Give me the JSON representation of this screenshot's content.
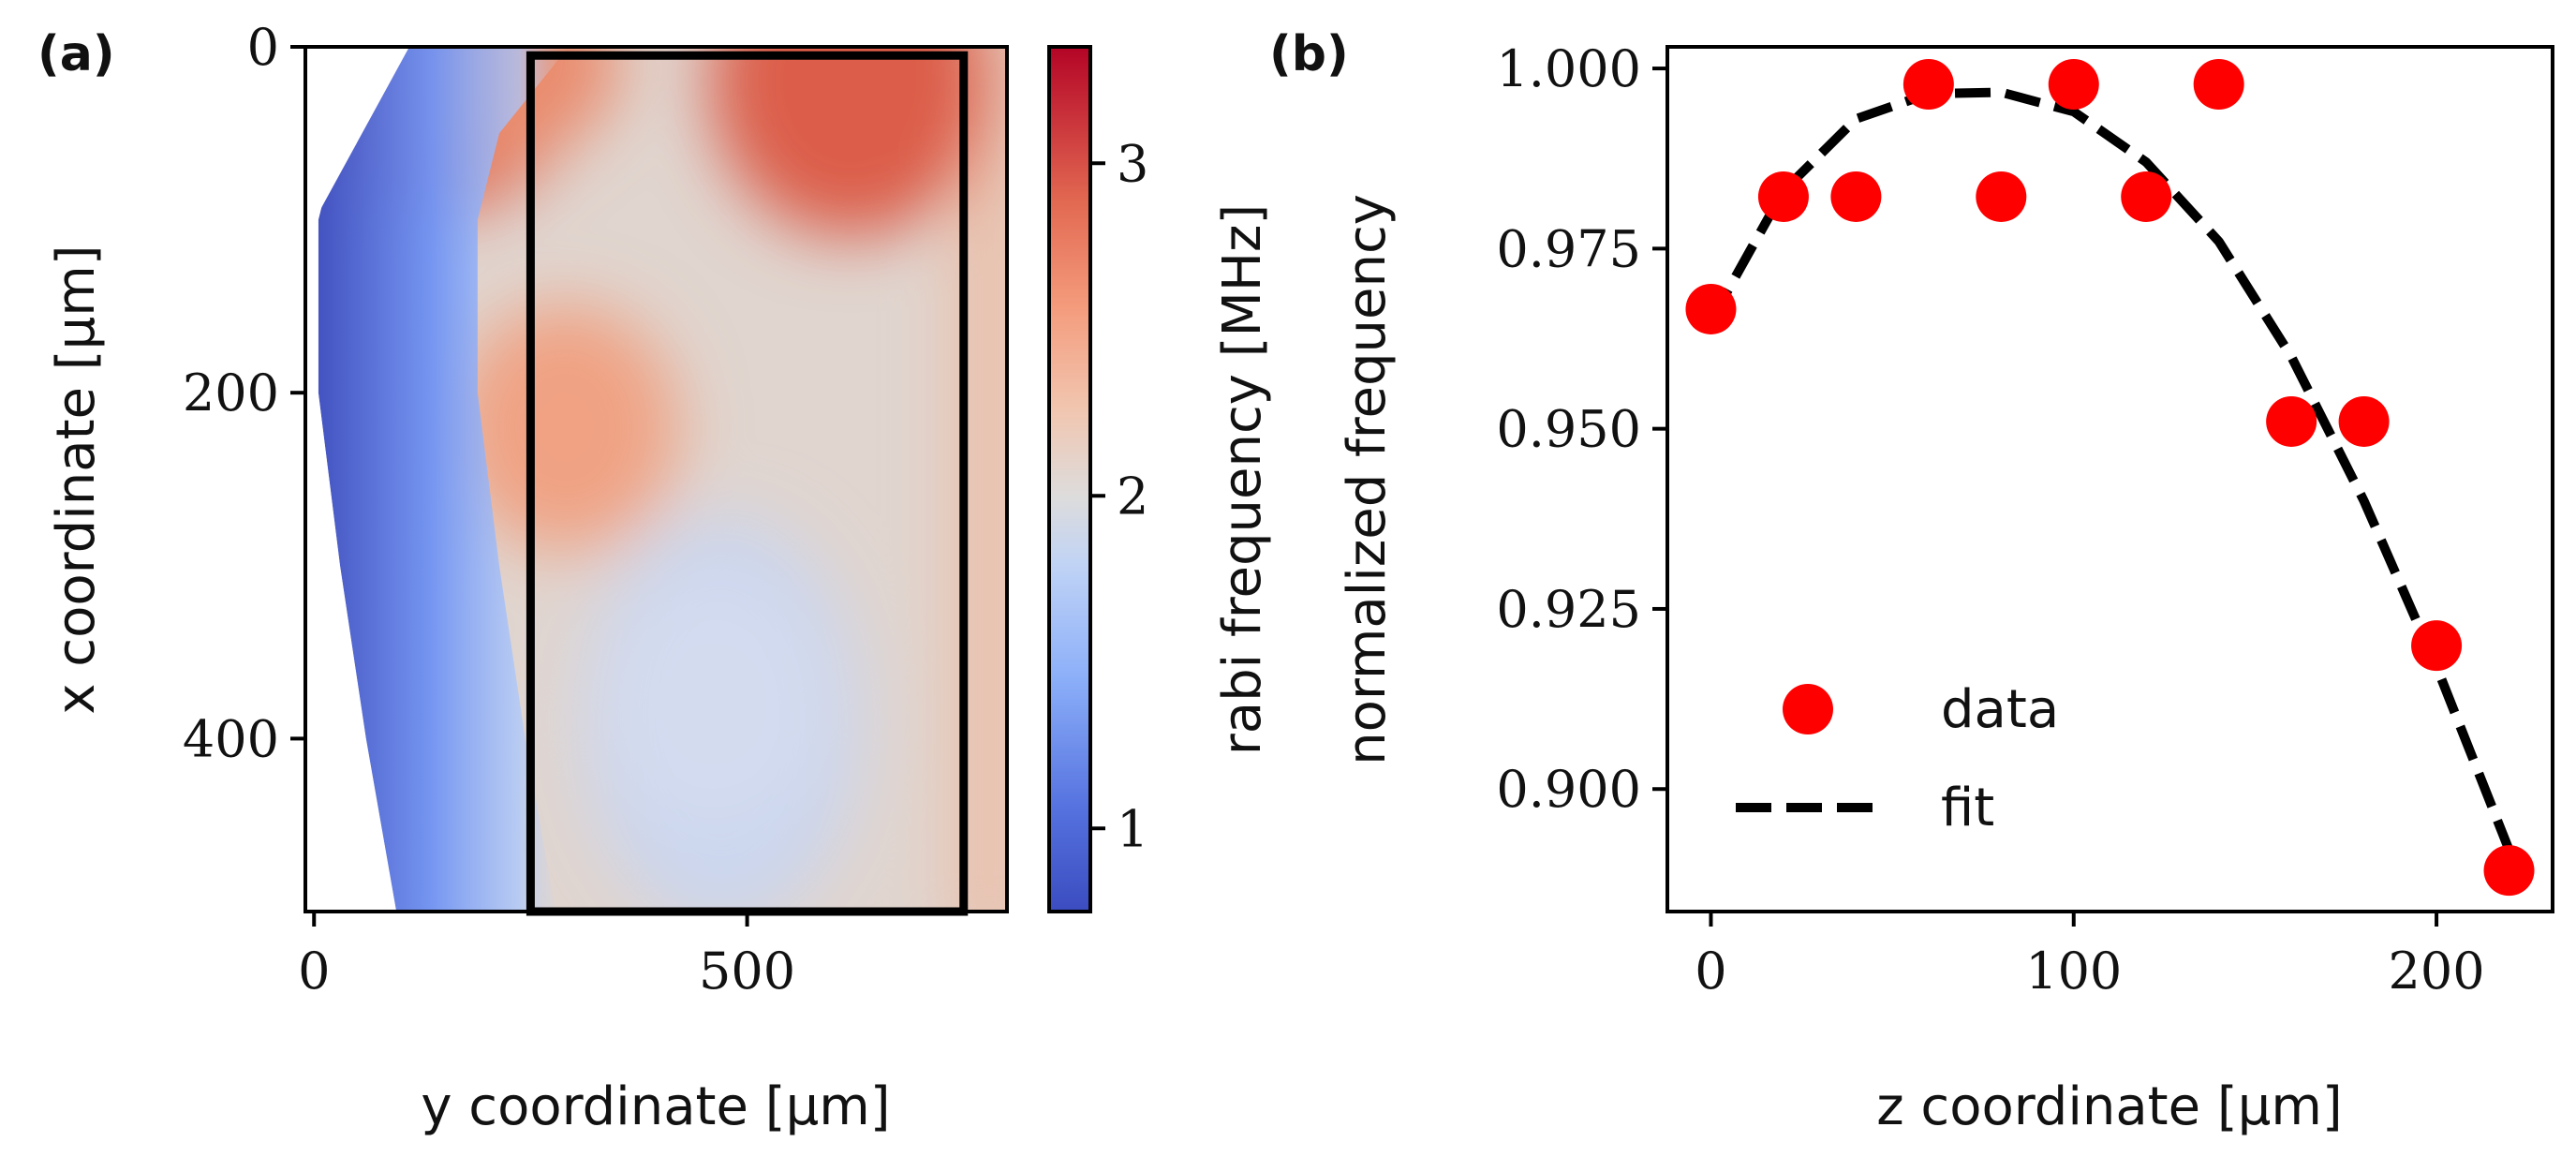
{
  "chart_data": [
    {
      "panel_label": "(a)",
      "type": "heatmap",
      "xlabel": "y coordinate [μm]",
      "ylabel": "x coordinate [μm]",
      "xlim": [
        -10,
        800
      ],
      "ylim": [
        500,
        0
      ],
      "xticks": [
        0,
        500
      ],
      "yticks": [
        0,
        200,
        400
      ],
      "colorbar": {
        "label": "rabi frequency [MHz]",
        "range": [
          0.75,
          3.35
        ],
        "ticks": [
          1,
          2,
          3
        ],
        "colormap": "coolwarm",
        "colors": {
          "low": "#3b4cc0",
          "mid": "#dddddd",
          "high": "#b40426"
        }
      },
      "region_box": {
        "y_range": [
          250,
          750
        ],
        "x_range": [
          5,
          500
        ]
      },
      "valid_region_left_edge": [
        {
          "x": 0,
          "y": 110
        },
        {
          "x": 50,
          "y": 30
        },
        {
          "x": 100,
          "y": 5
        },
        {
          "x": 200,
          "y": 5
        },
        {
          "x": 300,
          "y": 30
        },
        {
          "x": 400,
          "y": 60
        },
        {
          "x": 500,
          "y": 95
        }
      ],
      "hotspots_mhz": [
        {
          "x": 20,
          "y": 620,
          "value": 3.2
        },
        {
          "x": 5,
          "y": 150,
          "value": 3.1
        },
        {
          "x": 220,
          "y": 290,
          "value": 2.7
        },
        {
          "x": 380,
          "y": 460,
          "value": 1.7
        }
      ]
    },
    {
      "panel_label": "(b)",
      "type": "scatter",
      "xlabel": "z coordinate [μm]",
      "ylabel": "normalized frequency",
      "xlim": [
        -12,
        232
      ],
      "ylim": [
        0.883,
        1.003
      ],
      "xticks": [
        0,
        100,
        200
      ],
      "yticks": [
        0.9,
        0.925,
        0.95,
        0.975,
        1.0
      ],
      "ytick_labels": [
        "0.900",
        "0.925",
        "0.950",
        "0.975",
        "1.000"
      ],
      "legend": {
        "position": "lower-left",
        "entries": [
          "data",
          "fit"
        ]
      },
      "series": [
        {
          "name": "data",
          "style": "markers",
          "color": "#ff0000",
          "x": [
            0,
            20,
            40,
            60,
            80,
            100,
            120,
            140,
            160,
            180,
            200,
            220
          ],
          "y": [
            0.9666,
            0.9822,
            0.9822,
            0.9978,
            0.9822,
            0.9978,
            0.9822,
            0.9978,
            0.951,
            0.951,
            0.9199,
            0.8887
          ]
        },
        {
          "name": "fit",
          "style": "dashed",
          "color": "#000000",
          "x": [
            0,
            20,
            40,
            60,
            80,
            100,
            120,
            140,
            160,
            180,
            200,
            222
          ],
          "y": [
            0.965,
            0.983,
            0.993,
            0.9965,
            0.9967,
            0.994,
            0.987,
            0.976,
            0.96,
            0.94,
            0.917,
            0.889
          ]
        }
      ]
    }
  ]
}
